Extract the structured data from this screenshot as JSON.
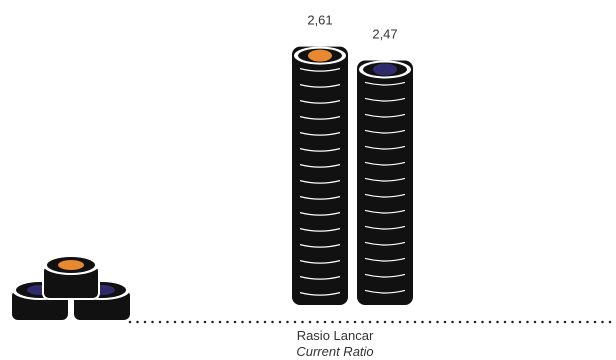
{
  "chart_data": {
    "type": "bar",
    "categories": [
      "Rasio Lancar"
    ],
    "category_subtitle": "Current Ratio",
    "series": [
      {
        "color": "#e8892f",
        "values": [
          2.61
        ],
        "value_labels": [
          "2,61"
        ]
      },
      {
        "color": "#2e2a6b",
        "values": [
          2.47
        ],
        "value_labels": [
          "2,47"
        ]
      }
    ]
  }
}
